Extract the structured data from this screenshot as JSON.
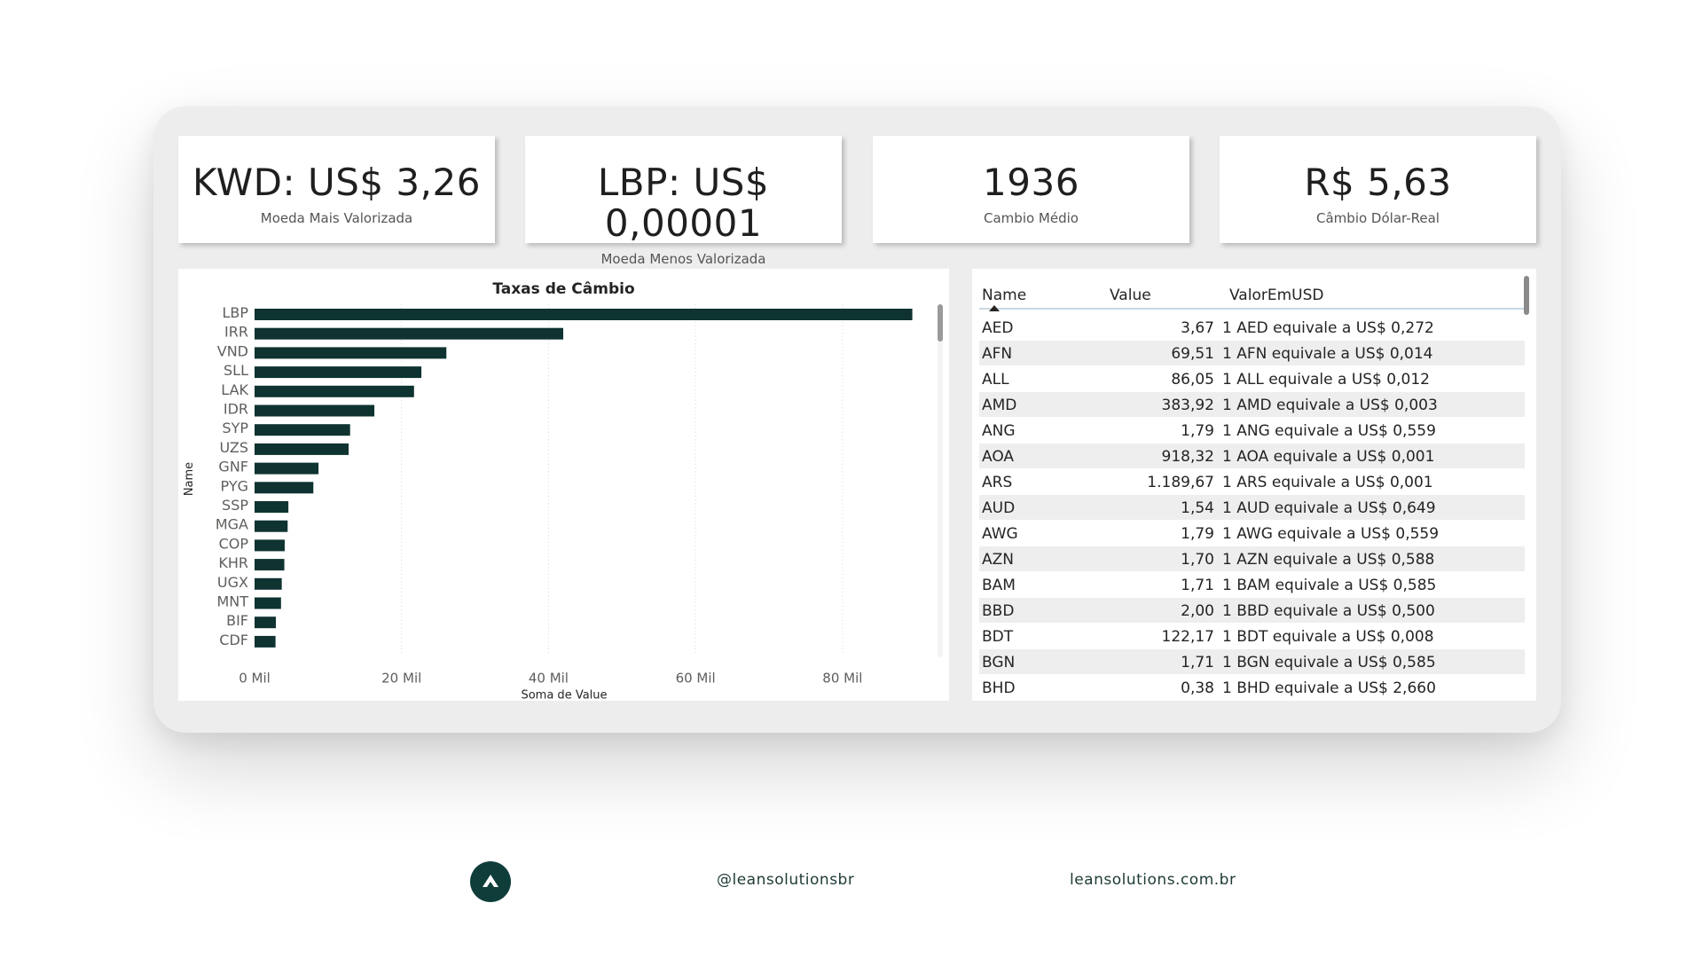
{
  "kpis": [
    {
      "value": "KWD: US$ 3,26",
      "label": "Moeda Mais Valorizada"
    },
    {
      "value": "LBP: US$ 0,00001",
      "label": "Moeda Menos Valorizada"
    },
    {
      "value": "1936",
      "label": "Cambio Médio"
    },
    {
      "value": "R$ 5,63",
      "label": "Câmbio Dólar-Real"
    }
  ],
  "chart_data": {
    "type": "bar",
    "orientation": "horizontal",
    "title": "Taxas de Câmbio",
    "xlabel": "Soma de Value",
    "ylabel": "Name",
    "categories": [
      "LBP",
      "IRR",
      "VND",
      "SLL",
      "LAK",
      "IDR",
      "SYP",
      "UZS",
      "GNF",
      "PYG",
      "SSP",
      "MGA",
      "COP",
      "KHR",
      "UGX",
      "MNT",
      "BIF",
      "CDF"
    ],
    "values": [
      89500,
      42000,
      26100,
      22700,
      21700,
      16300,
      13000,
      12800,
      8700,
      8000,
      4600,
      4500,
      4100,
      4050,
      3700,
      3600,
      2900,
      2850
    ],
    "xticks": [
      "0 Mil",
      "20 Mil",
      "40 Mil",
      "60 Mil",
      "80 Mil"
    ],
    "xtick_values": [
      0,
      20000,
      40000,
      60000,
      80000
    ],
    "xlim": [
      0,
      91000
    ],
    "grid": true,
    "bar_color": "#0e3330"
  },
  "table": {
    "headers": [
      "Name",
      "Value",
      "ValorEmUSD"
    ],
    "rows": [
      [
        "AED",
        "3,67",
        "1 AED equivale a US$ 0,272"
      ],
      [
        "AFN",
        "69,51",
        "1 AFN equivale a US$ 0,014"
      ],
      [
        "ALL",
        "86,05",
        "1 ALL equivale a US$ 0,012"
      ],
      [
        "AMD",
        "383,92",
        "1 AMD equivale a US$ 0,003"
      ],
      [
        "ANG",
        "1,79",
        "1 ANG equivale a US$ 0,559"
      ],
      [
        "AOA",
        "918,32",
        "1 AOA equivale a US$ 0,001"
      ],
      [
        "ARS",
        "1.189,67",
        "1 ARS equivale a US$ 0,001"
      ],
      [
        "AUD",
        "1,54",
        "1 AUD equivale a US$ 0,649"
      ],
      [
        "AWG",
        "1,79",
        "1 AWG equivale a US$ 0,559"
      ],
      [
        "AZN",
        "1,70",
        "1 AZN equivale a US$ 0,588"
      ],
      [
        "BAM",
        "1,71",
        "1 BAM equivale a US$ 0,585"
      ],
      [
        "BBD",
        "2,00",
        "1 BBD equivale a US$ 0,500"
      ],
      [
        "BDT",
        "122,17",
        "1 BDT equivale a US$ 0,008"
      ],
      [
        "BGN",
        "1,71",
        "1 BGN equivale a US$ 0,585"
      ],
      [
        "BHD",
        "0,38",
        "1 BHD equivale a US$ 2,660"
      ]
    ]
  },
  "footer": {
    "handle": "@leansolutionsbr",
    "website": "leansolutions.com.br"
  },
  "colors": {
    "accent": "#0e3330",
    "frame": "#ededed"
  }
}
